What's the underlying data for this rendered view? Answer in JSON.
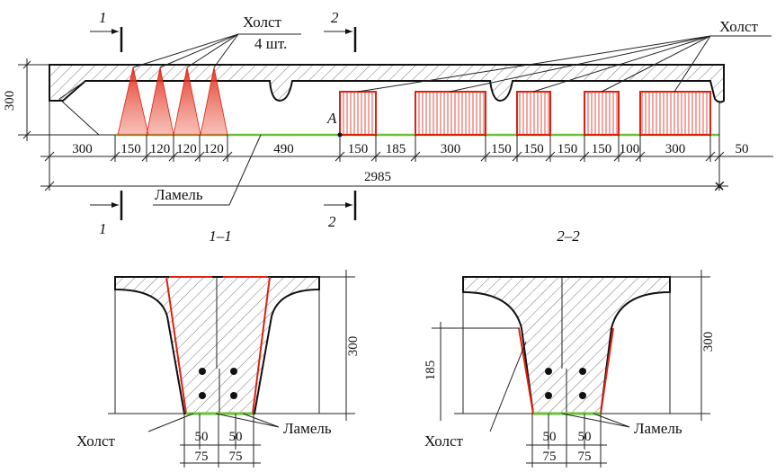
{
  "section_marks": {
    "s1_top": "1",
    "s1_bottom": "1",
    "s2_top": "2",
    "s2_bottom": "2"
  },
  "labels": {
    "holst_left": "Холст",
    "count": "4 шт.",
    "holst_right": "Холст",
    "lamel": "Ламель",
    "point": "A"
  },
  "height_dim": 300,
  "dimensions": [
    300,
    150,
    120,
    120,
    120,
    490,
    150,
    185,
    300,
    150,
    150,
    150,
    150,
    100,
    300,
    50
  ],
  "total": 2985,
  "section_1": {
    "title": "1–1",
    "height": 300,
    "holst": "Холст",
    "lamel": "Ламель",
    "inner": [
      50,
      50
    ],
    "outer": [
      75,
      75
    ]
  },
  "section_2": {
    "title": "2–2",
    "height": 300,
    "depth": 185,
    "holst": "Холст",
    "lamel": "Ламель",
    "inner": [
      50,
      50
    ],
    "outer": [
      75,
      75
    ]
  }
}
